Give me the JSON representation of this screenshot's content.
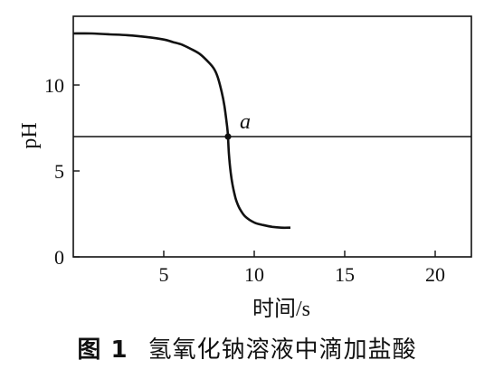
{
  "chart_data": {
    "type": "line",
    "xlabel": "时间/s",
    "ylabel": "pH",
    "xlim": [
      0,
      22
    ],
    "ylim": [
      0,
      14
    ],
    "x_ticks": [
      5,
      10,
      15,
      20
    ],
    "y_ticks": [
      0,
      5,
      10
    ],
    "series": [
      {
        "x": [
          0,
          1,
          2,
          3,
          4,
          5,
          5.5,
          6,
          6.5,
          7,
          7.5,
          7.8,
          8.0,
          8.2,
          8.35,
          8.5,
          8.55,
          8.6,
          8.7,
          8.8,
          8.9,
          9.0,
          9.2,
          9.5,
          10.0,
          10.5,
          11.0,
          11.5,
          12.0
        ],
        "y": [
          13.0,
          13.0,
          12.95,
          12.9,
          12.8,
          12.65,
          12.5,
          12.35,
          12.1,
          11.8,
          11.3,
          10.9,
          10.4,
          9.6,
          8.8,
          7.6,
          7.0,
          6.0,
          4.9,
          4.2,
          3.7,
          3.3,
          2.8,
          2.35,
          2.0,
          1.85,
          1.75,
          1.7,
          1.7
        ]
      }
    ],
    "reference_line": {
      "y": 7
    },
    "annotations": [
      {
        "label": "a",
        "x": 8.55,
        "y": 7
      }
    ]
  },
  "caption": {
    "figure": "图 1",
    "text": "氢氧化钠溶液中滴加盐酸"
  }
}
